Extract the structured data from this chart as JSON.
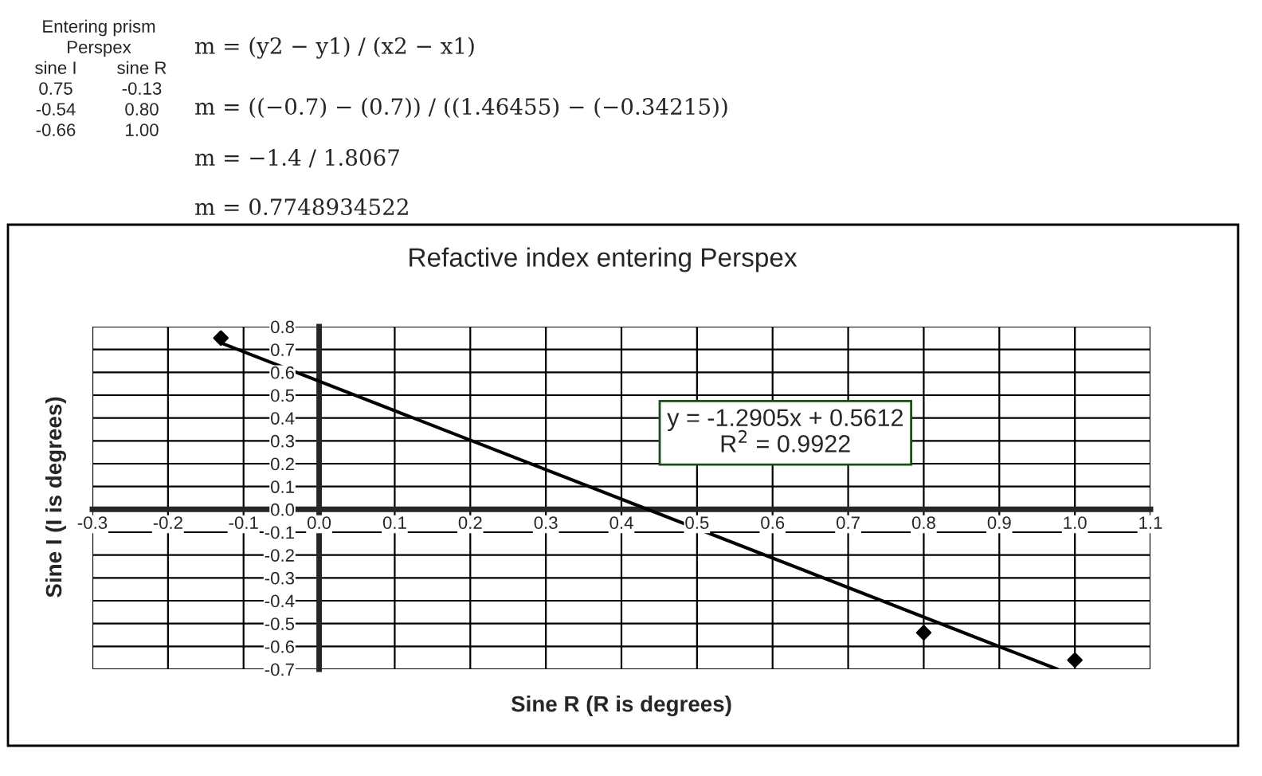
{
  "chart_data": {
    "type": "scatter",
    "title": "Refactive index entering Perspex",
    "xlabel": "Sine R (R is degrees)",
    "ylabel": "Sine I (I is degrees)",
    "series": [
      {
        "type": "scatter",
        "color": "#000000",
        "marker": "diamond",
        "x": [
          -0.13,
          0.8,
          1.0
        ],
        "values": [
          0.75,
          -0.54,
          -0.66
        ]
      },
      {
        "type": "line",
        "color": "#000000",
        "marker": "none",
        "line_style": "solid",
        "x": [
          -0.13,
          0.977
        ],
        "values": [
          0.729,
          -0.7
        ]
      }
    ],
    "xlim": [
      -0.3,
      1.1
    ],
    "ylim": [
      -0.7,
      0.8
    ],
    "xticks": [
      -0.3,
      -0.2,
      -0.1,
      {
        "value": 0,
        "label": "0.0"
      },
      0.1,
      0.2,
      0.3,
      0.4,
      0.5,
      0.6,
      0.7,
      0.8,
      0.9,
      {
        "value": 1,
        "label": "1.0"
      },
      1.1
    ],
    "yticks": [
      -0.7,
      -0.6,
      -0.5,
      -0.4,
      -0.3,
      -0.2,
      -0.1,
      {
        "value": 0,
        "label": "0.0"
      },
      0.1,
      0.2,
      0.3,
      0.4,
      0.5,
      0.6,
      0.7,
      0.8
    ],
    "grid": true,
    "annotations": [
      "Entering prism",
      "Perspex",
      "sine I",
      "sine R",
      "0.75",
      "-0.13",
      "-0.54",
      "0.80",
      "-0.66",
      "1.00",
      "m = (y2 − y1) / (x2 − x1)",
      "m = ((−0.7) − (0.7)) / ((1.46455) − (−0.34215))",
      "m = −1.4 / 1.8067",
      "m = 0.7748934522",
      "y = -1.2905x + 0.5612\nR$^{2}$ = 0.9922"
    ]
  }
}
